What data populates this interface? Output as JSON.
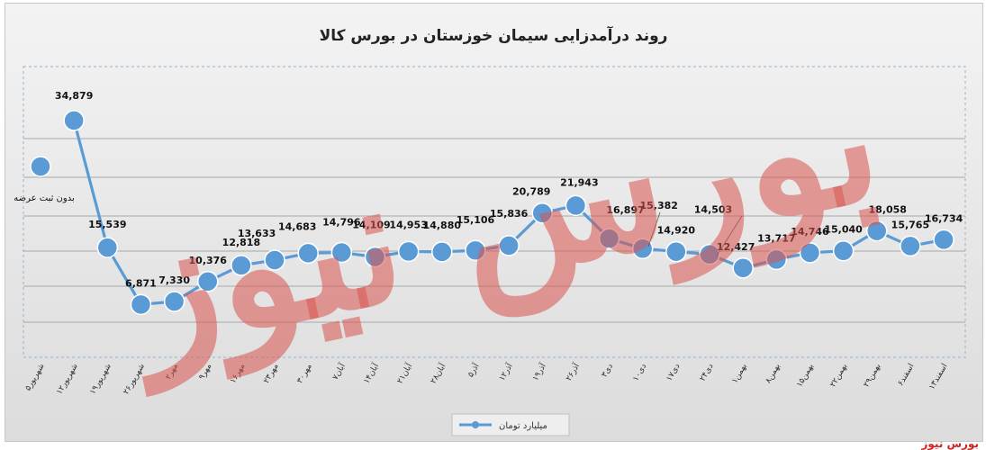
{
  "chart_data": {
    "type": "line",
    "title": "روند درآمدزایی سیمان خوزستان در بورس کالا",
    "categories": [
      "۵شهریور",
      "۱۲شهریور",
      "۱۹شهریور",
      "۲۶شهریور",
      "۲مهر",
      "۹مهر",
      "۱۶مهر",
      "۲۳مهر",
      "۳۰مهر",
      "۷آبان",
      "۱۴آبان",
      "۲۱آبان",
      "۲۸آبان",
      "۵آذر",
      "۱۲آذر",
      "۱۹آذر",
      "۲۶آذر",
      "۳دی",
      "۱۰دی",
      "۱۷دی",
      "۲۴دی",
      "۱بهمن",
      "۸بهمن",
      "۱۵بهمن",
      "۲۲بهمن",
      "۲۹بهمن",
      "۶اسفند",
      "۱۳اسفند"
    ],
    "series": [
      {
        "name": "میلیارد تومان",
        "color": "#5b9bd5",
        "values": [
          null,
          34879,
          15539,
          6871,
          7330,
          10376,
          12818,
          13633,
          14683,
          14796,
          14109,
          14953,
          14880,
          15106,
          15836,
          20789,
          21943,
          16897,
          15382,
          14920,
          14503,
          12427,
          13717,
          14746,
          15040,
          18058,
          15765,
          16734
        ],
        "labels": [
          "",
          "34,879",
          "15,539",
          "6,871",
          "7,330",
          "10,376",
          "12,818",
          "13,633",
          "14,683",
          "14,796",
          "14,109",
          "14,953",
          "14,880",
          "15,106",
          "15,836",
          "20,789",
          "21,943",
          "16,897",
          "15,382",
          "14,920",
          "14,503",
          "12,427",
          "13,717",
          "14,746",
          "15,040",
          "18,058",
          "15,765",
          "16,734"
        ]
      }
    ],
    "first_point_note": "بدون ثبت عرضه",
    "legend_position": "bottom",
    "grid": true
  },
  "watermark": {
    "text": "بورس نیوز",
    "color": "#d9534f"
  },
  "brand_text": "بورس نیوز"
}
